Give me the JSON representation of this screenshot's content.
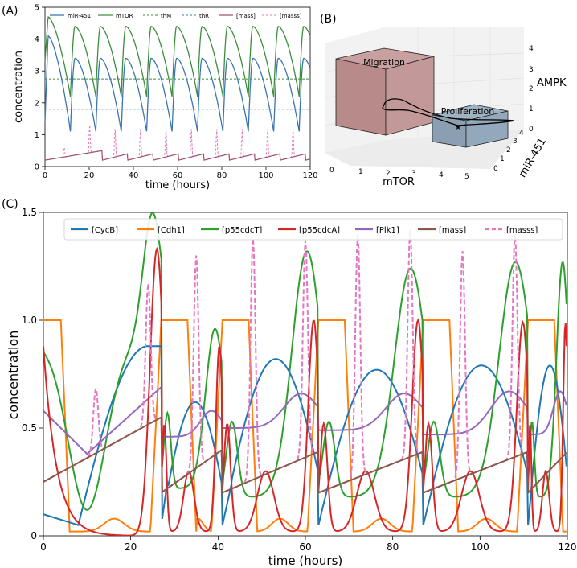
{
  "panel_labels": {
    "a": "(A)",
    "b": "(B)",
    "c": "(C)"
  },
  "chart_data": [
    {
      "id": "A",
      "type": "line",
      "xlabel": "time (hours)",
      "ylabel": "concentration",
      "xlim": [
        0,
        120
      ],
      "ylim": [
        0,
        5
      ],
      "xticks": [
        0,
        20,
        40,
        60,
        80,
        100,
        120
      ],
      "yticks": [
        0,
        1,
        2,
        3,
        4,
        5
      ],
      "grid": false,
      "legend": "top",
      "colors": {
        "miR451": "#3b75af",
        "mTOR": "#3c8d3c",
        "mass": "#a0506e",
        "mass_s": "#e07ab8"
      },
      "legend_items": [
        "miR-451",
        "mTOR",
        "thM",
        "thR",
        "[mass]",
        "[masss]"
      ],
      "thresholds": {
        "thM": 2.75,
        "thR": 1.8
      },
      "series": [
        {
          "name": "miR-451",
          "period": 11.5,
          "start": 1.4,
          "peak": 3.4,
          "first_peak": 4.1,
          "trough": 1.1
        },
        {
          "name": "mTOR",
          "period": 11.5,
          "start": 3.3,
          "peak": 4.4,
          "first_peak": 4.7,
          "trough": 2.2
        },
        {
          "name": "[mass]",
          "period": 11.5,
          "low": 0.2,
          "high": 0.4
        },
        {
          "name": "[masss]",
          "period": 11.5,
          "low": 0.2,
          "high": 1.2
        }
      ]
    },
    {
      "id": "B",
      "type": "scatter3d",
      "xlabel": "mTOR",
      "ylabel": "miR-451",
      "zlabel": "AMPK",
      "xticks": [
        0,
        1,
        2,
        3,
        4,
        5
      ],
      "yticks": [
        0,
        1,
        2,
        3,
        4
      ],
      "zticks": [
        0,
        1,
        2,
        3,
        4
      ],
      "regions": [
        {
          "name": "Migration",
          "color": "#b77a7a"
        },
        {
          "name": "Proliferation",
          "color": "#6b8aa0"
        }
      ]
    },
    {
      "id": "C",
      "type": "line",
      "xlabel": "time (hours)",
      "ylabel": "concentration",
      "xlim": [
        0,
        120
      ],
      "ylim": [
        0,
        1.5
      ],
      "xticks": [
        0,
        20,
        40,
        60,
        80,
        100,
        120
      ],
      "yticks": [
        0,
        0.5,
        1.0,
        1.5
      ],
      "ytick_labels": [
        "0",
        "0.5",
        "1.0",
        "1.5"
      ],
      "grid": false,
      "legend": "top",
      "divisions": [
        0,
        27,
        41,
        63,
        87,
        111,
        120
      ],
      "colors": {
        "CycB": "#1f77b4",
        "Cdh1": "#ff7f0e",
        "p55T": "#2ca02c",
        "p55A": "#d62728",
        "Plk1": "#9467bd",
        "mass": "#8c564b",
        "mass_s": "#e377c2"
      },
      "series": [
        {
          "name": "[CycB]",
          "peaks": [
            0.88,
            0.62,
            0.82,
            0.77,
            0.79
          ],
          "troughs": [
            0.05,
            0.04,
            0.04,
            0.04,
            0.04
          ]
        },
        {
          "name": "[Cdh1]",
          "high": 1.0,
          "low": 0.0
        },
        {
          "name": "[p55cdcT]",
          "peaks": [
            1.5,
            0.96,
            1.32,
            1.24,
            1.27
          ],
          "troughs": [
            0.12,
            0.22,
            0.18,
            0.18,
            0.18
          ]
        },
        {
          "name": "[p55cdcA]",
          "peaks": [
            1.33,
            0.86,
            0.98,
            0.98,
            0.97
          ],
          "troughs": [
            0.0,
            0.02,
            0.02,
            0.02,
            0.02
          ]
        },
        {
          "name": "[Plk1]",
          "peaks": [
            0.69,
            0.58,
            0.66,
            0.66,
            0.67
          ],
          "troughs": [
            0.38,
            0.46,
            0.5,
            0.49,
            0.47
          ]
        },
        {
          "name": "[mass]",
          "low": 0.25,
          "high": [
            0.55,
            0.4,
            0.39,
            0.39,
            0.39
          ]
        },
        {
          "name": "[masss]",
          "spike_peaks": [
            1.17,
            1.3,
            1.38,
            1.37,
            1.4,
            1.42,
            1.32,
            1.4
          ]
        }
      ],
      "legend_items": [
        "[CycB]",
        "[Cdh1]",
        "[p55cdcT]",
        "[p55cdcA]",
        "[Plk1]",
        "[mass]",
        "[masss]"
      ]
    }
  ]
}
